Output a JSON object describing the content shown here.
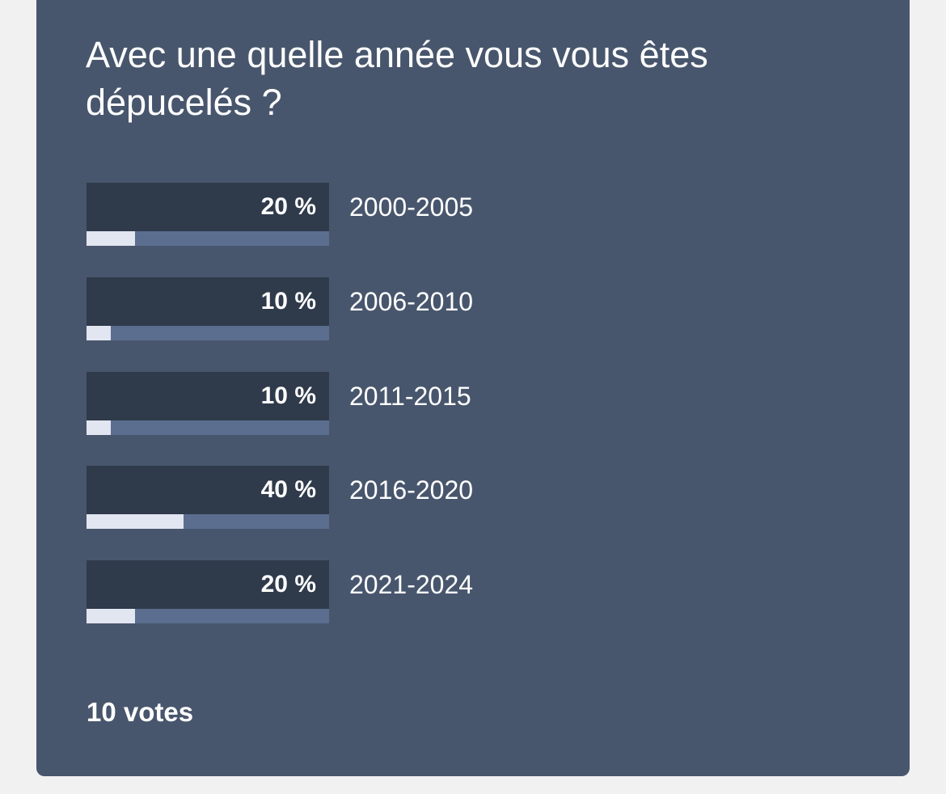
{
  "poll": {
    "question": "Avec une quelle année vous vous êtes dépucelés ?",
    "options": [
      {
        "label": "2000-2005",
        "percent_text": "20 %",
        "fraction": 0.2
      },
      {
        "label": "2006-2010",
        "percent_text": "10 %",
        "fraction": 0.1
      },
      {
        "label": "2011-2015",
        "percent_text": "10 %",
        "fraction": 0.1
      },
      {
        "label": "2016-2020",
        "percent_text": "40 %",
        "fraction": 0.4
      },
      {
        "label": "2021-2024",
        "percent_text": "20 %",
        "fraction": 0.2
      }
    ],
    "votes_text": "10 votes"
  },
  "colors": {
    "page_background": "#f1f1f1",
    "card_background": "#48566d",
    "percent_background": "#2f3a4b",
    "bar_track": "#5b6e8f",
    "bar_fill": "#e2e6f0",
    "text": "#ffffff"
  }
}
